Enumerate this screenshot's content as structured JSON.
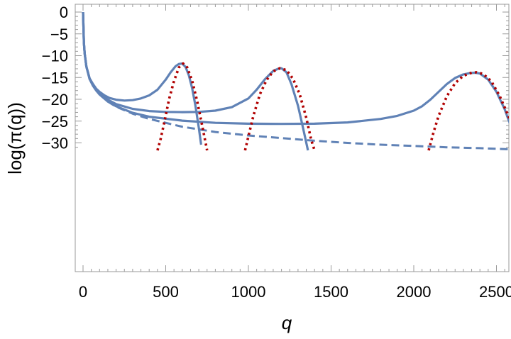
{
  "chart_data": {
    "type": "line",
    "title": "",
    "xlabel": "q",
    "ylabel": "log(π(q))",
    "xlim": [
      -50,
      2750
    ],
    "ylim": [
      -31.7,
      0.4
    ],
    "x_ticks": [
      0,
      500,
      1000,
      1500,
      2000,
      2500
    ],
    "x_tick_labels": [
      "0",
      "500",
      "1000",
      "1500",
      "2000",
      "2500"
    ],
    "y_ticks": [
      0,
      -5,
      -10,
      -15,
      -20,
      -25,
      -30
    ],
    "y_tick_labels": [
      "0",
      "−5",
      "−10",
      "−15",
      "−20",
      "−25",
      "−30"
    ],
    "grid": false,
    "legend": "none",
    "colors": {
      "solid": "#6082b6",
      "dashed": "#6082b6",
      "dotted": "#b10000"
    },
    "series": [
      {
        "style": "solid",
        "x": [
          0,
          5,
          10,
          20,
          40,
          60,
          80,
          100,
          130,
          160,
          200,
          250,
          300,
          350,
          400,
          450,
          500,
          530,
          560,
          580,
          600,
          620,
          640,
          660,
          680,
          700,
          714
        ],
        "y": [
          0,
          -7,
          -9.5,
          -12.5,
          -15.2,
          -16.5,
          -17.6,
          -18.3,
          -19.1,
          -19.7,
          -20.1,
          -20.3,
          -20.2,
          -19.8,
          -19.1,
          -17.8,
          -15.5,
          -13.8,
          -12.4,
          -11.9,
          -11.8,
          -12.6,
          -14.5,
          -17.5,
          -21.5,
          -26.5,
          -30.4
        ]
      },
      {
        "style": "solid",
        "x": [
          0,
          5,
          10,
          20,
          40,
          60,
          80,
          100,
          150,
          200,
          300,
          400,
          500,
          600,
          700,
          800,
          900,
          1000,
          1050,
          1100,
          1150,
          1180,
          1200,
          1230,
          1260,
          1300,
          1330,
          1360
        ],
        "y": [
          0,
          -7,
          -9.5,
          -12.5,
          -15.3,
          -16.7,
          -17.8,
          -18.7,
          -20.1,
          -21.1,
          -22.2,
          -22.7,
          -22.9,
          -22.95,
          -22.9,
          -22.6,
          -21.8,
          -19.8,
          -17.8,
          -15.4,
          -13.5,
          -13.0,
          -12.9,
          -13.8,
          -16.5,
          -21.5,
          -26.5,
          -31.7
        ]
      },
      {
        "style": "solid",
        "x": [
          0,
          5,
          10,
          20,
          40,
          60,
          80,
          100,
          150,
          200,
          300,
          400,
          600,
          800,
          1000,
          1200,
          1400,
          1600,
          1800,
          1900,
          2000,
          2050,
          2100,
          2150,
          2200,
          2250,
          2300,
          2340,
          2370,
          2400,
          2450,
          2500,
          2550,
          2600,
          2640
        ],
        "y": [
          0,
          -7,
          -9.5,
          -12.5,
          -15.4,
          -16.9,
          -18.0,
          -18.9,
          -20.5,
          -21.6,
          -23.1,
          -24.0,
          -24.9,
          -25.4,
          -25.6,
          -25.65,
          -25.6,
          -25.3,
          -24.5,
          -23.8,
          -22.6,
          -21.6,
          -20.1,
          -18.3,
          -16.5,
          -15.1,
          -14.3,
          -14.0,
          -13.9,
          -14.1,
          -15.5,
          -18.3,
          -22.3,
          -27.5,
          -31.7
        ]
      },
      {
        "style": "dashed",
        "x": [
          0,
          5,
          10,
          20,
          40,
          60,
          80,
          100,
          150,
          200,
          300,
          400,
          600,
          800,
          1000,
          1200,
          1400,
          1600,
          1800,
          2000,
          2200,
          2400,
          2600,
          2750
        ],
        "y": [
          0,
          -7,
          -9.5,
          -12.5,
          -15.4,
          -16.9,
          -18.0,
          -18.9,
          -20.5,
          -21.7,
          -23.3,
          -24.5,
          -26.3,
          -27.5,
          -28.3,
          -28.9,
          -29.5,
          -30.0,
          -30.4,
          -30.7,
          -31.0,
          -31.2,
          -31.5,
          -31.7
        ]
      },
      {
        "style": "dotted",
        "x": [
          450,
          470,
          490,
          520,
          550,
          580,
          605,
          630,
          660,
          690,
          720,
          750
        ],
        "y": [
          -31.7,
          -29.0,
          -25.5,
          -20.0,
          -15.8,
          -12.7,
          -11.8,
          -12.7,
          -15.8,
          -20.4,
          -26.0,
          -31.7
        ]
      },
      {
        "style": "dotted",
        "x": [
          980,
          1000,
          1030,
          1070,
          1110,
          1150,
          1190,
          1230,
          1270,
          1310,
          1350,
          1380,
          1400
        ],
        "y": [
          -31.7,
          -28.5,
          -23.8,
          -18.8,
          -15.6,
          -13.6,
          -12.9,
          -13.3,
          -15.3,
          -18.8,
          -24.3,
          -29.3,
          -31.7
        ]
      },
      {
        "style": "dotted",
        "x": [
          2090,
          2120,
          2150,
          2200,
          2250,
          2300,
          2350,
          2380,
          2420,
          2470,
          2520,
          2570,
          2620,
          2660
        ],
        "y": [
          -31.7,
          -27.5,
          -23.8,
          -19.3,
          -16.3,
          -14.6,
          -13.9,
          -13.8,
          -14.2,
          -15.9,
          -19.3,
          -23.6,
          -28.7,
          -31.7
        ]
      }
    ]
  }
}
